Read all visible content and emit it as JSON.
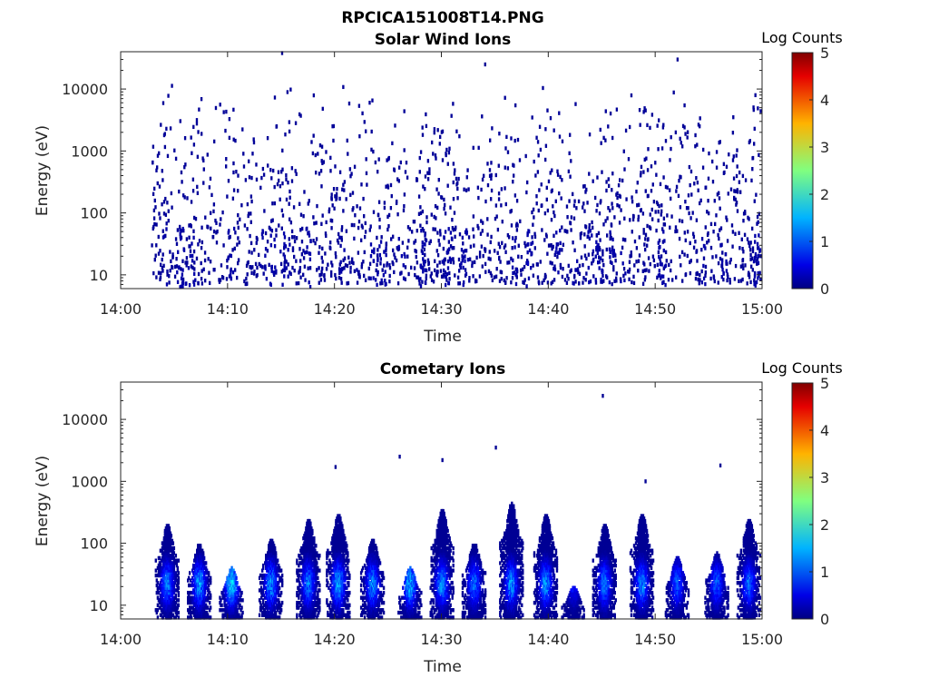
{
  "figure_title": "RPCICA151008T14.PNG",
  "chart_data": [
    {
      "type": "heatmap",
      "title": "Solar Wind Ions",
      "xlabel": "Time",
      "ylabel": "Energy (eV)",
      "x_ticks": [
        "14:00",
        "14:10",
        "14:20",
        "14:30",
        "14:40",
        "14:50",
        "15:00"
      ],
      "xlim": [
        "14:00",
        "15:00"
      ],
      "y_scale": "log",
      "ylim": [
        6,
        40000
      ],
      "y_ticks": [
        {
          "value": 10,
          "label": "10"
        },
        {
          "value": 100,
          "label": "100"
        },
        {
          "value": 1000,
          "label": "1000"
        },
        {
          "value": 10000,
          "label": "10000"
        }
      ],
      "colorbar": {
        "label": "Log Counts",
        "range": [
          0,
          5
        ],
        "ticks": [
          "0",
          "1",
          "2",
          "3",
          "4",
          "5"
        ],
        "colormap": "jet"
      },
      "pattern": "sparse single counts (Log Counts ~0) scattered over ~7 eV to ~30000 eV from about 14:03 to 15:00; denser vertical streaks below ~60 eV",
      "cells": [
        {
          "t": "14:08",
          "e": 60,
          "log_counts": 0.1
        },
        {
          "t": "14:13",
          "e": 14,
          "log_counts": 0.2
        },
        {
          "t": "14:22",
          "e": 12,
          "log_counts": 0.2
        },
        {
          "t": "14:38",
          "e": 15,
          "log_counts": 0.3
        },
        {
          "t": "14:15",
          "e": 38000,
          "log_counts": 0.1
        },
        {
          "t": "14:34",
          "e": 25000,
          "log_counts": 0.1
        },
        {
          "t": "14:52",
          "e": 30000,
          "log_counts": 0.1
        }
      ]
    },
    {
      "type": "heatmap",
      "title": "Cometary Ions",
      "xlabel": "Time",
      "ylabel": "Energy (eV)",
      "x_ticks": [
        "14:00",
        "14:10",
        "14:20",
        "14:30",
        "14:40",
        "14:50",
        "15:00"
      ],
      "xlim": [
        "14:00",
        "15:00"
      ],
      "y_scale": "log",
      "ylim": [
        6,
        40000
      ],
      "y_ticks": [
        {
          "value": 10,
          "label": "10"
        },
        {
          "value": 100,
          "label": "100"
        },
        {
          "value": 1000,
          "label": "1000"
        },
        {
          "value": 10000,
          "label": "10000"
        }
      ],
      "colorbar": {
        "label": "Log Counts",
        "range": [
          0,
          5
        ],
        "ticks": [
          "0",
          "1",
          "2",
          "3",
          "4",
          "5"
        ],
        "colormap": "jet"
      },
      "pattern": "periodic bursts below ~300 eV, peaking at Log Counts ~1.5-2 around 15-40 eV",
      "bursts": [
        {
          "t": "14:04.3",
          "emax": 200,
          "peak": 1.4
        },
        {
          "t": "14:07.3",
          "emax": 100,
          "peak": 1.6
        },
        {
          "t": "14:10.3",
          "emax": 40,
          "peak": 1.9
        },
        {
          "t": "14:14.0",
          "emax": 120,
          "peak": 1.5
        },
        {
          "t": "14:17.5",
          "emax": 250,
          "peak": 1.4
        },
        {
          "t": "14:20.3",
          "emax": 300,
          "peak": 1.7
        },
        {
          "t": "14:23.5",
          "emax": 120,
          "peak": 1.5
        },
        {
          "t": "14:27.0",
          "emax": 40,
          "peak": 1.7
        },
        {
          "t": "14:30.0",
          "emax": 350,
          "peak": 1.5
        },
        {
          "t": "14:33.0",
          "emax": 100,
          "peak": 1.3
        },
        {
          "t": "14:36.5",
          "emax": 450,
          "peak": 1.5
        },
        {
          "t": "14:39.7",
          "emax": 300,
          "peak": 1.5
        },
        {
          "t": "14:42.3",
          "emax": 20,
          "peak": 0.8
        },
        {
          "t": "14:45.2",
          "emax": 200,
          "peak": 1.4
        },
        {
          "t": "14:48.7",
          "emax": 300,
          "peak": 1.5
        },
        {
          "t": "14:52.0",
          "emax": 60,
          "peak": 1.2
        },
        {
          "t": "14:55.7",
          "emax": 70,
          "peak": 1.2
        },
        {
          "t": "14:58.7",
          "emax": 250,
          "peak": 1.3
        }
      ],
      "isolated": [
        {
          "t": "14:45",
          "e": 24000,
          "log_counts": 0.1
        },
        {
          "t": "14:35",
          "e": 3500,
          "log_counts": 0.1
        },
        {
          "t": "14:26",
          "e": 2500,
          "log_counts": 0.1
        },
        {
          "t": "14:30",
          "e": 2200,
          "log_counts": 0.1
        },
        {
          "t": "14:20",
          "e": 1700,
          "log_counts": 0.1
        },
        {
          "t": "14:49",
          "e": 1000,
          "log_counts": 0.1
        },
        {
          "t": "14:56",
          "e": 1800,
          "log_counts": 0.1
        }
      ]
    }
  ]
}
